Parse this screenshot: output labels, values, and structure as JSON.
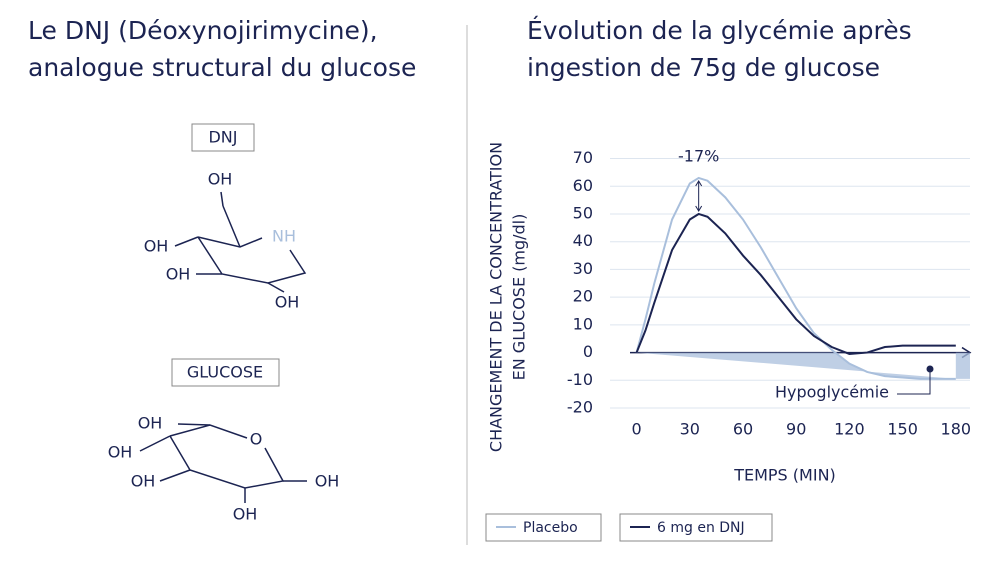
{
  "left": {
    "title": [
      "Le DNJ (Déoxynojirimycine),",
      "analogue structural du glucose"
    ],
    "dnj": {
      "label": "DNJ",
      "atoms": [
        "OH",
        "NH",
        "OH",
        "OH",
        "OH"
      ]
    },
    "glucose": {
      "label": "GLUCOSE",
      "atoms": [
        "OH",
        "O",
        "OH",
        "OH",
        "OH",
        "OH"
      ]
    }
  },
  "chart_data": {
    "type": "line",
    "title": [
      "Évolution de la glycémie après",
      "ingestion de 75g de glucose"
    ],
    "y_label": [
      "CHANGEMENT DE LA CONCENTRATION",
      "EN GLUCOSE (mg/dl)"
    ],
    "x_label": "TEMPS (MIN)",
    "x": [
      0,
      5,
      10,
      20,
      30,
      35,
      40,
      50,
      60,
      70,
      80,
      90,
      100,
      110,
      120,
      130,
      140,
      150,
      160,
      170,
      180
    ],
    "series": [
      {
        "name": "Placebo",
        "color": "#a9bfdc",
        "values": [
          0,
          12,
          25,
          48,
          61,
          63,
          62,
          56,
          48,
          38,
          27,
          16,
          7,
          1,
          -4,
          -7,
          -8.5,
          -9,
          -9.5,
          -9.5,
          -9.5
        ]
      },
      {
        "name": "6 mg en DNJ",
        "color": "#1c2452",
        "values": [
          0,
          8,
          18,
          37,
          48,
          50,
          49,
          43,
          35,
          28,
          20,
          12,
          6,
          2,
          -0.5,
          0,
          2,
          2.5,
          2.5,
          2.5,
          2.5
        ]
      }
    ],
    "xlim": [
      -15,
      188
    ],
    "xticks": [
      0,
      30,
      60,
      90,
      120,
      150,
      180
    ],
    "ylim": [
      -20,
      72
    ],
    "yticks": [
      -20,
      -10,
      0,
      10,
      20,
      30,
      40,
      50,
      60,
      70
    ],
    "grid": true,
    "annotations": [
      "-17%",
      "Hypoglycémie"
    ]
  }
}
